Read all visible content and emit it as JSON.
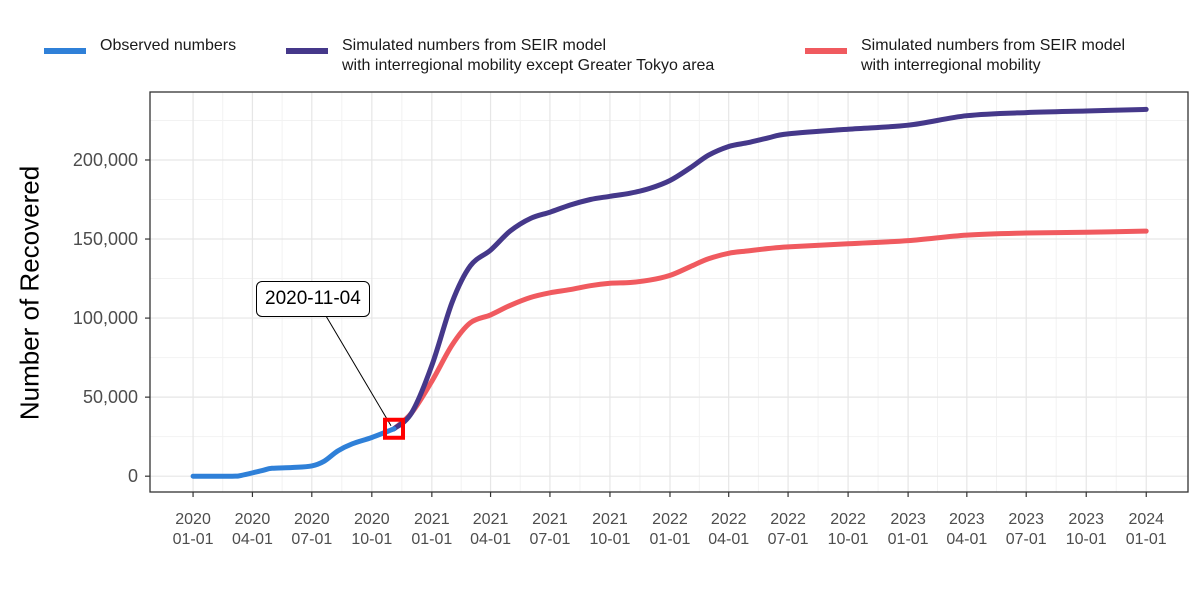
{
  "legend": {
    "items": [
      {
        "label": "Observed numbers",
        "color": "#2F80D8"
      },
      {
        "label": "Simulated numbers from SEIR model\nwith interregional mobility except Greater Tokyo area",
        "color": "#45388A"
      },
      {
        "label": "Simulated numbers from SEIR model\nwith interregional mobility",
        "color": "#F05A5F"
      }
    ]
  },
  "annotation": {
    "label": "2020-11-04",
    "marker_color": "#FF0000"
  },
  "chart_data": {
    "type": "line",
    "xlabel": "",
    "ylabel": "Number of Recovered",
    "ylim": [
      -10000,
      243000
    ],
    "xlim": [
      "2019-10-27",
      "2024-03-05"
    ],
    "grid": true,
    "legend_position": "top",
    "y_ticks": [
      {
        "value": 0,
        "label": "0"
      },
      {
        "value": 50000,
        "label": "50,000"
      },
      {
        "value": 100000,
        "label": "100,000"
      },
      {
        "value": 150000,
        "label": "150,000"
      },
      {
        "value": 200000,
        "label": "200,000"
      }
    ],
    "x_ticks": [
      {
        "date": "2020-01-01",
        "line1": "2020",
        "line2": "01-01"
      },
      {
        "date": "2020-04-01",
        "line1": "2020",
        "line2": "04-01"
      },
      {
        "date": "2020-07-01",
        "line1": "2020",
        "line2": "07-01"
      },
      {
        "date": "2020-10-01",
        "line1": "2020",
        "line2": "10-01"
      },
      {
        "date": "2021-01-01",
        "line1": "2021",
        "line2": "01-01"
      },
      {
        "date": "2021-04-01",
        "line1": "2021",
        "line2": "04-01"
      },
      {
        "date": "2021-07-01",
        "line1": "2021",
        "line2": "07-01"
      },
      {
        "date": "2021-10-01",
        "line1": "2021",
        "line2": "10-01"
      },
      {
        "date": "2022-01-01",
        "line1": "2022",
        "line2": "01-01"
      },
      {
        "date": "2022-04-01",
        "line1": "2022",
        "line2": "04-01"
      },
      {
        "date": "2022-07-01",
        "line1": "2022",
        "line2": "07-01"
      },
      {
        "date": "2022-10-01",
        "line1": "2022",
        "line2": "10-01"
      },
      {
        "date": "2023-01-01",
        "line1": "2023",
        "line2": "01-01"
      },
      {
        "date": "2023-04-01",
        "line1": "2023",
        "line2": "04-01"
      },
      {
        "date": "2023-07-01",
        "line1": "2023",
        "line2": "07-01"
      },
      {
        "date": "2023-10-01",
        "line1": "2023",
        "line2": "10-01"
      },
      {
        "date": "2024-01-01",
        "line1": "2024",
        "line2": "01-01"
      }
    ],
    "annotation_point": {
      "date": "2020-11-04",
      "value": 30000
    },
    "series": [
      {
        "name": "Observed numbers",
        "color": "#2F80D8",
        "points": [
          [
            "2020-01-01",
            0
          ],
          [
            "2020-03-01",
            0
          ],
          [
            "2020-03-15",
            500
          ],
          [
            "2020-04-15",
            3500
          ],
          [
            "2020-05-01",
            5000
          ],
          [
            "2020-06-01",
            5500
          ],
          [
            "2020-07-01",
            6500
          ],
          [
            "2020-07-20",
            9500
          ],
          [
            "2020-08-10",
            16000
          ],
          [
            "2020-09-01",
            20500
          ],
          [
            "2020-10-01",
            24500
          ],
          [
            "2020-11-04",
            30000
          ]
        ]
      },
      {
        "name": "Simulated numbers from SEIR model with interregional mobility except Greater Tokyo area",
        "color": "#45388A",
        "points": [
          [
            "2020-11-04",
            30000
          ],
          [
            "2020-12-01",
            40000
          ],
          [
            "2021-01-01",
            70000
          ],
          [
            "2021-02-01",
            110000
          ],
          [
            "2021-03-01",
            133000
          ],
          [
            "2021-04-01",
            143000
          ],
          [
            "2021-05-01",
            155000
          ],
          [
            "2021-06-01",
            163000
          ],
          [
            "2021-07-01",
            167000
          ],
          [
            "2021-08-01",
            171500
          ],
          [
            "2021-09-01",
            175000
          ],
          [
            "2021-10-01",
            177000
          ],
          [
            "2021-11-01",
            179000
          ],
          [
            "2021-12-01",
            182000
          ],
          [
            "2022-01-01",
            187000
          ],
          [
            "2022-02-01",
            195000
          ],
          [
            "2022-03-01",
            203000
          ],
          [
            "2022-04-01",
            208500
          ],
          [
            "2022-05-01",
            211000
          ],
          [
            "2022-06-01",
            214000
          ],
          [
            "2022-07-01",
            216500
          ],
          [
            "2022-10-01",
            219500
          ],
          [
            "2023-01-01",
            222000
          ],
          [
            "2023-04-01",
            228000
          ],
          [
            "2023-07-01",
            230000
          ],
          [
            "2023-10-01",
            231000
          ],
          [
            "2024-01-01",
            232000
          ]
        ]
      },
      {
        "name": "Simulated numbers from SEIR model with interregional mobility",
        "color": "#F05A5F",
        "points": [
          [
            "2020-11-04",
            30000
          ],
          [
            "2020-12-01",
            40000
          ],
          [
            "2021-01-01",
            60000
          ],
          [
            "2021-02-01",
            83000
          ],
          [
            "2021-03-01",
            97000
          ],
          [
            "2021-04-01",
            102000
          ],
          [
            "2021-05-01",
            108000
          ],
          [
            "2021-06-01",
            113000
          ],
          [
            "2021-07-01",
            116000
          ],
          [
            "2021-08-01",
            118000
          ],
          [
            "2021-09-01",
            120500
          ],
          [
            "2021-10-01",
            122000
          ],
          [
            "2021-11-01",
            122500
          ],
          [
            "2021-12-01",
            124000
          ],
          [
            "2022-01-01",
            127000
          ],
          [
            "2022-02-01",
            132500
          ],
          [
            "2022-03-01",
            137500
          ],
          [
            "2022-04-01",
            141000
          ],
          [
            "2022-05-01",
            142500
          ],
          [
            "2022-06-01",
            144000
          ],
          [
            "2022-07-01",
            145000
          ],
          [
            "2022-10-01",
            147000
          ],
          [
            "2023-01-01",
            149000
          ],
          [
            "2023-04-01",
            152500
          ],
          [
            "2023-07-01",
            153800
          ],
          [
            "2023-10-01",
            154300
          ],
          [
            "2024-01-01",
            155000
          ]
        ]
      }
    ]
  }
}
